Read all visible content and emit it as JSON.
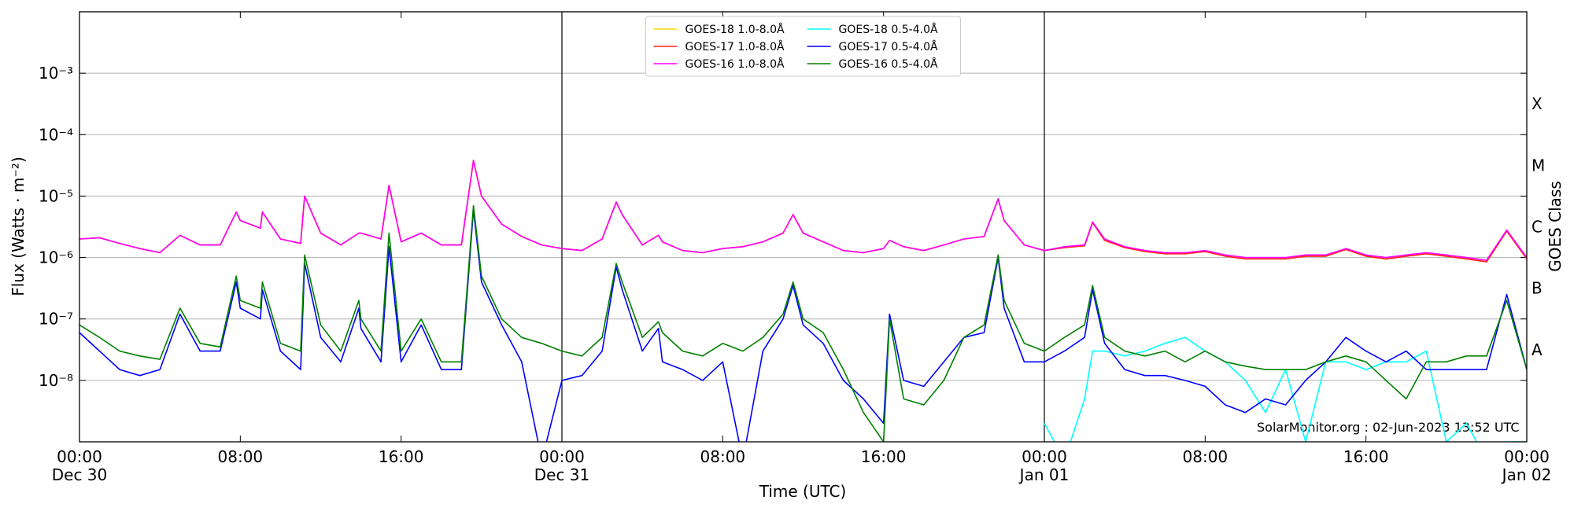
{
  "chart_data": {
    "type": "line",
    "xlabel": "Time (UTC)",
    "ylabel": "Flux (Watts · m⁻²)",
    "y2label": "GOES Class",
    "annotation": "SolarMonitor.org : 02-Jun-2023 13:52 UTC",
    "log_y": true,
    "grid": true,
    "legend": "upper center",
    "xlim": [
      0,
      72
    ],
    "ylim": [
      1e-09,
      0.01
    ],
    "xticks": [
      {
        "value": 0,
        "label": "00:00\nDec 30"
      },
      {
        "value": 8,
        "label": "08:00"
      },
      {
        "value": 16,
        "label": "16:00"
      },
      {
        "value": 24,
        "label": "00:00\nDec 31"
      },
      {
        "value": 32,
        "label": "08:00"
      },
      {
        "value": 40,
        "label": "16:00"
      },
      {
        "value": 48,
        "label": "00:00\nJan 01"
      },
      {
        "value": 56,
        "label": "08:00"
      },
      {
        "value": 64,
        "label": "16:00"
      },
      {
        "value": 72,
        "label": "00:00\nJan 02"
      }
    ],
    "yticks": [
      {
        "value": 1e-08,
        "label": "10⁻⁸"
      },
      {
        "value": 1e-07,
        "label": "10⁻⁷"
      },
      {
        "value": 1e-06,
        "label": "10⁻⁶"
      },
      {
        "value": 1e-05,
        "label": "10⁻⁵"
      },
      {
        "value": 0.0001,
        "label": "10⁻⁴"
      },
      {
        "value": 0.001,
        "label": "10⁻³"
      }
    ],
    "class_ticks": [
      {
        "value": 3.16e-08,
        "label": "A"
      },
      {
        "value": 3.16e-07,
        "label": "B"
      },
      {
        "value": 3.16e-06,
        "label": "C"
      },
      {
        "value": 3.16e-05,
        "label": "M"
      },
      {
        "value": 0.000316,
        "label": "X"
      }
    ],
    "day_lines": [
      24,
      48
    ],
    "x": [
      0,
      1,
      2,
      3,
      4,
      5,
      6,
      7,
      7.8,
      8,
      9,
      9.1,
      10,
      11,
      11.2,
      12,
      13,
      13.9,
      14,
      15,
      15.4,
      16,
      17,
      18,
      19,
      19.6,
      20,
      21,
      22,
      23,
      24,
      25,
      26,
      26.7,
      27,
      28,
      28.8,
      29,
      30,
      31,
      32,
      33,
      34,
      35,
      35.5,
      36,
      37,
      38,
      39,
      40,
      40.3,
      41,
      42,
      43,
      44,
      45,
      45.7,
      46,
      47,
      48,
      49,
      50,
      50.4,
      51,
      52,
      53,
      54,
      55,
      56,
      57,
      58,
      59,
      60,
      61,
      62,
      63,
      64,
      65,
      66,
      67,
      68,
      69,
      70,
      71,
      72
    ],
    "series": [
      {
        "name": "GOES-18 1.0-8.0Å",
        "color": "#ffd700",
        "values": [
          2e-06,
          2.1e-06,
          1.7e-06,
          1.4e-06,
          1.2e-06,
          2.3e-06,
          1.6e-06,
          1.6e-06,
          5.5e-06,
          4e-06,
          3e-06,
          5.5e-06,
          2e-06,
          1.7e-06,
          1e-05,
          2.5e-06,
          1.6e-06,
          2.5e-06,
          2.5e-06,
          2e-06,
          1.5e-05,
          1.8e-06,
          2.5e-06,
          1.6e-06,
          1.6e-06,
          3.8e-05,
          1e-05,
          3.5e-06,
          2.2e-06,
          1.6e-06,
          1.4e-06,
          1.3e-06,
          2e-06,
          8e-06,
          5e-06,
          1.6e-06,
          2.3e-06,
          1.8e-06,
          1.3e-06,
          1.2e-06,
          1.4e-06,
          1.5e-06,
          1.8e-06,
          2.5e-06,
          5e-06,
          2.5e-06,
          1.8e-06,
          1.3e-06,
          1.2e-06,
          1.4e-06,
          1.9e-06,
          1.5e-06,
          1.3e-06,
          1.6e-06,
          2e-06,
          2.2e-06,
          9e-06,
          4e-06,
          1.6e-06,
          1.3e-06,
          1.45e-06,
          1.55e-06,
          3.7e-06,
          1.9e-06,
          1.45e-06,
          1.25e-06,
          1.15e-06,
          1.15e-06,
          1.25e-06,
          1.05e-06,
          9.5e-07,
          9.5e-07,
          9.5e-07,
          1.05e-06,
          1.05e-06,
          1.35e-06,
          1.05e-06,
          9.5e-07,
          1.05e-06,
          1.15e-06,
          1.05e-06,
          9.5e-07,
          8.5e-07,
          2.7e-06,
          9.5e-07
        ]
      },
      {
        "name": "GOES-17 1.0-8.0Å",
        "color": "#ff2020",
        "values": [
          2e-06,
          2.1e-06,
          1.7e-06,
          1.4e-06,
          1.2e-06,
          2.3e-06,
          1.6e-06,
          1.6e-06,
          5.5e-06,
          4e-06,
          3e-06,
          5.5e-06,
          2e-06,
          1.7e-06,
          1e-05,
          2.5e-06,
          1.6e-06,
          2.5e-06,
          2.5e-06,
          2e-06,
          1.5e-05,
          1.8e-06,
          2.5e-06,
          1.6e-06,
          1.6e-06,
          3.8e-05,
          1e-05,
          3.5e-06,
          2.2e-06,
          1.6e-06,
          1.4e-06,
          1.3e-06,
          2e-06,
          8e-06,
          5e-06,
          1.6e-06,
          2.3e-06,
          1.8e-06,
          1.3e-06,
          1.2e-06,
          1.4e-06,
          1.5e-06,
          1.8e-06,
          2.5e-06,
          5e-06,
          2.5e-06,
          1.8e-06,
          1.3e-06,
          1.2e-06,
          1.4e-06,
          1.9e-06,
          1.5e-06,
          1.3e-06,
          1.6e-06,
          2e-06,
          2.2e-06,
          9e-06,
          4e-06,
          1.6e-06,
          1.3e-06,
          1.45e-06,
          1.55e-06,
          3.7e-06,
          1.9e-06,
          1.45e-06,
          1.25e-06,
          1.15e-06,
          1.15e-06,
          1.25e-06,
          1.05e-06,
          9.5e-07,
          9.5e-07,
          9.5e-07,
          1.05e-06,
          1.05e-06,
          1.35e-06,
          1.05e-06,
          9.5e-07,
          1.05e-06,
          1.15e-06,
          1.05e-06,
          9.5e-07,
          8.5e-07,
          2.7e-06,
          9.5e-07
        ]
      },
      {
        "name": "GOES-16 1.0-8.0Å",
        "color": "#ff00ff",
        "values": [
          2e-06,
          2.1e-06,
          1.7e-06,
          1.4e-06,
          1.2e-06,
          2.3e-06,
          1.6e-06,
          1.6e-06,
          5.5e-06,
          4e-06,
          3e-06,
          5.5e-06,
          2e-06,
          1.7e-06,
          1e-05,
          2.5e-06,
          1.6e-06,
          2.5e-06,
          2.5e-06,
          2e-06,
          1.5e-05,
          1.8e-06,
          2.5e-06,
          1.6e-06,
          1.6e-06,
          3.8e-05,
          1e-05,
          3.5e-06,
          2.2e-06,
          1.6e-06,
          1.4e-06,
          1.3e-06,
          2e-06,
          8e-06,
          5e-06,
          1.6e-06,
          2.3e-06,
          1.8e-06,
          1.3e-06,
          1.2e-06,
          1.4e-06,
          1.5e-06,
          1.8e-06,
          2.5e-06,
          5e-06,
          2.5e-06,
          1.8e-06,
          1.3e-06,
          1.2e-06,
          1.4e-06,
          1.9e-06,
          1.5e-06,
          1.3e-06,
          1.6e-06,
          2e-06,
          2.2e-06,
          9e-06,
          4e-06,
          1.6e-06,
          1.3e-06,
          1.5e-06,
          1.6e-06,
          3.8e-06,
          2e-06,
          1.5e-06,
          1.3e-06,
          1.2e-06,
          1.2e-06,
          1.3e-06,
          1.1e-06,
          1e-06,
          1e-06,
          1e-06,
          1.1e-06,
          1.1e-06,
          1.4e-06,
          1.1e-06,
          1e-06,
          1.1e-06,
          1.2e-06,
          1.1e-06,
          1e-06,
          9e-07,
          2.8e-06,
          1e-06
        ]
      },
      {
        "name": "GOES-18 0.5-4.0Å",
        "color": "#00ffff",
        "values": [
          null,
          null,
          null,
          null,
          null,
          null,
          null,
          null,
          null,
          null,
          null,
          null,
          null,
          null,
          null,
          null,
          null,
          null,
          null,
          null,
          null,
          null,
          null,
          null,
          null,
          null,
          null,
          null,
          null,
          null,
          null,
          null,
          null,
          null,
          null,
          null,
          null,
          null,
          null,
          null,
          null,
          null,
          null,
          null,
          null,
          null,
          null,
          null,
          null,
          null,
          null,
          null,
          null,
          null,
          null,
          null,
          null,
          null,
          null,
          2e-09,
          5e-10,
          5e-09,
          3e-08,
          3e-08,
          2.5e-08,
          3e-08,
          4e-08,
          5e-08,
          3e-08,
          2e-08,
          1e-08,
          3e-09,
          1.5e-08,
          1e-09,
          2e-08,
          2e-08,
          1.5e-08,
          2e-08,
          2e-08,
          3e-08,
          1e-09,
          2e-09,
          5e-10,
          1e-09,
          1e-09
        ]
      },
      {
        "name": "GOES-17 0.5-4.0Å",
        "color": "#0000ff",
        "values": [
          6e-08,
          3e-08,
          1.5e-08,
          1.2e-08,
          1.5e-08,
          1.2e-07,
          3e-08,
          3e-08,
          4e-07,
          1.5e-07,
          1e-07,
          3e-07,
          3e-08,
          1.5e-08,
          8e-07,
          5e-08,
          2e-08,
          1.5e-07,
          7e-08,
          2e-08,
          1.5e-06,
          2e-08,
          8e-08,
          1.5e-08,
          1.5e-08,
          6e-06,
          4e-07,
          8e-08,
          2e-08,
          5e-10,
          1e-08,
          1.2e-08,
          3e-08,
          7e-07,
          3e-07,
          3e-08,
          7e-08,
          2e-08,
          1.5e-08,
          1e-08,
          2e-08,
          5e-10,
          3e-08,
          1e-07,
          3.5e-07,
          8e-08,
          4e-08,
          1e-08,
          5e-09,
          2e-09,
          1.2e-07,
          1e-08,
          8e-09,
          2e-08,
          5e-08,
          6e-08,
          1e-06,
          1.5e-07,
          2e-08,
          2e-08,
          3e-08,
          5e-08,
          3e-07,
          4e-08,
          1.5e-08,
          1.2e-08,
          1.2e-08,
          1e-08,
          8e-09,
          4e-09,
          3e-09,
          5e-09,
          4e-09,
          1e-08,
          2e-08,
          5e-08,
          3e-08,
          2e-08,
          3e-08,
          1.5e-08,
          1.5e-08,
          1.5e-08,
          1.5e-08,
          2.5e-07,
          1.5e-08
        ]
      },
      {
        "name": "GOES-16 0.5-4.0Å",
        "color": "#008000",
        "values": [
          8e-08,
          5e-08,
          3e-08,
          2.5e-08,
          2.2e-08,
          1.5e-07,
          4e-08,
          3.5e-08,
          5e-07,
          2e-07,
          1.5e-07,
          4e-07,
          4e-08,
          3e-08,
          1.1e-06,
          8e-08,
          3e-08,
          2e-07,
          1e-07,
          3e-08,
          2.5e-06,
          3e-08,
          1e-07,
          2e-08,
          2e-08,
          7e-06,
          5e-07,
          1e-07,
          5e-08,
          4e-08,
          3e-08,
          2.5e-08,
          5e-08,
          8e-07,
          4e-07,
          5e-08,
          9e-08,
          6e-08,
          3e-08,
          2.5e-08,
          4e-08,
          3e-08,
          5e-08,
          1.2e-07,
          4e-07,
          1e-07,
          6e-08,
          1.5e-08,
          3e-09,
          1e-09,
          1e-07,
          5e-09,
          4e-09,
          1e-08,
          5e-08,
          8e-08,
          1.1e-06,
          2e-07,
          4e-08,
          3e-08,
          5e-08,
          8e-08,
          3.5e-07,
          5e-08,
          3e-08,
          2.5e-08,
          3e-08,
          2e-08,
          3e-08,
          2e-08,
          1.7e-08,
          1.5e-08,
          1.5e-08,
          1.5e-08,
          2e-08,
          2.5e-08,
          2e-08,
          1e-08,
          5e-09,
          2e-08,
          2e-08,
          2.5e-08,
          2.5e-08,
          2e-07,
          1.5e-08
        ]
      }
    ]
  }
}
